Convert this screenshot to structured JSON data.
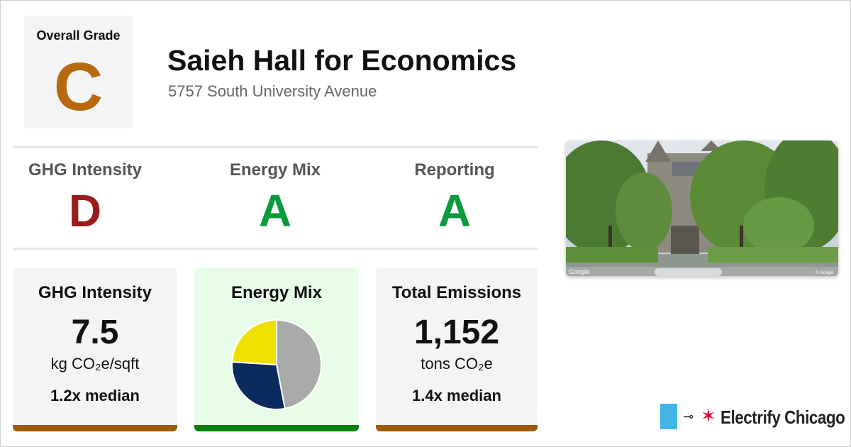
{
  "overall": {
    "label": "Overall Grade",
    "grade": "C",
    "grade_color": "#b8690f"
  },
  "building": {
    "name": "Saieh Hall for Economics",
    "address": "5757 South University Avenue"
  },
  "grades": [
    {
      "label": "GHG Intensity",
      "grade": "D",
      "color": "#9b1c1c"
    },
    {
      "label": "Energy Mix",
      "grade": "A",
      "color": "#0a9a3c"
    },
    {
      "label": "Reporting",
      "grade": "A",
      "color": "#0a9a3c"
    }
  ],
  "cards": {
    "ghg": {
      "title": "GHG Intensity",
      "value": "7.5",
      "unit": "kg CO₂e/sqft",
      "median": "1.2x median",
      "bar_color": "#9a5a0f"
    },
    "mix": {
      "title": "Energy Mix",
      "bar_color": "#0b7f0b"
    },
    "emissions": {
      "title": "Total Emissions",
      "value": "1,152",
      "unit": "tons CO₂e",
      "median": "1.4x median",
      "bar_color": "#9a5a0f"
    }
  },
  "energy_mix_pie": {
    "slices": [
      {
        "share": 0.47,
        "color": "#aaaaaa"
      },
      {
        "share": 0.29,
        "color": "#0b2a5e"
      },
      {
        "share": 0.24,
        "color": "#f0e000"
      }
    ]
  },
  "photo": {
    "watermark_left": "Google",
    "watermark_right": "© Google"
  },
  "brand": {
    "name": "Electrify Chicago",
    "plug_icon": "plug-icon",
    "star_icon": "chicago-star-icon"
  }
}
